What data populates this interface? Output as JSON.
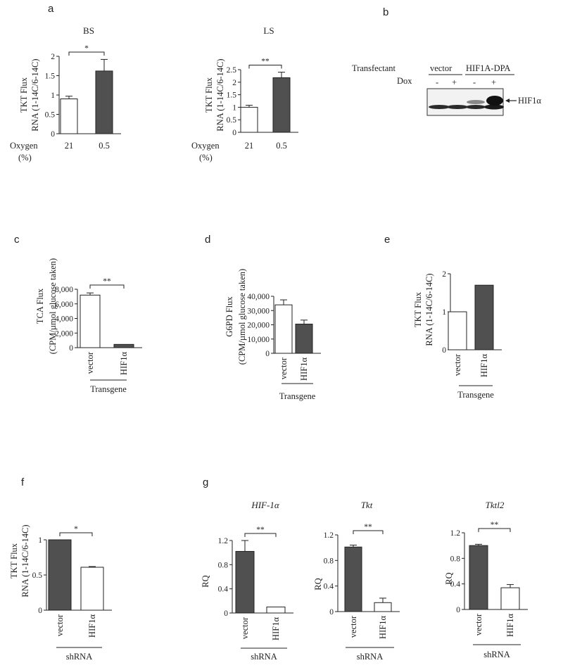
{
  "panels": {
    "a": "a",
    "b": "b",
    "c": "c",
    "d": "d",
    "e": "e",
    "f": "f",
    "g": "g"
  },
  "panel_a_common": {
    "x_axis_label_1": "Oxygen",
    "x_axis_label_2": "(%)"
  },
  "western_blot": {
    "transfectant_label": "Transfectant",
    "dox_label": "Dox",
    "group1": "vector",
    "group2": "HIF1A-DPA",
    "lanes": [
      "-",
      "+",
      "-",
      "+"
    ],
    "band_label": "HIF1α"
  },
  "chart_data": [
    {
      "id": "a-BS",
      "type": "bar",
      "title": "BS",
      "ylabel": [
        "TKT Flux",
        "RNA (1-14C/6-14C)"
      ],
      "xlabel": "Oxygen (%)",
      "categories": [
        "21",
        "0.5"
      ],
      "values": [
        0.9,
        1.62
      ],
      "errors": [
        0.07,
        0.3
      ],
      "fills": [
        "#ffffff",
        "#505050"
      ],
      "ylim": [
        0,
        2
      ],
      "yticks": [
        0,
        0.5,
        1,
        1.5,
        2
      ],
      "ytick_labels": [
        "0",
        "0.5",
        "1",
        "1.5",
        "2"
      ],
      "significance": "*",
      "grid": false
    },
    {
      "id": "a-LS",
      "type": "bar",
      "title": "LS",
      "ylabel": [
        "TKT Flux",
        "RNA (1-14C/6-14C)"
      ],
      "xlabel": "Oxygen (%)",
      "categories": [
        "21",
        "0.5"
      ],
      "values": [
        1.0,
        2.18
      ],
      "errors": [
        0.08,
        0.22
      ],
      "fills": [
        "#ffffff",
        "#505050"
      ],
      "ylim": [
        0,
        2.5
      ],
      "yticks": [
        0,
        0.5,
        1,
        1.5,
        2,
        2.5
      ],
      "ytick_labels": [
        "0",
        "0.5",
        "1",
        "1.5",
        "2",
        "2.5"
      ],
      "significance": "**",
      "grid": false
    },
    {
      "id": "c",
      "type": "bar",
      "ylabel": [
        "TCA Flux",
        "(CPM/µmol glucose taken)"
      ],
      "xlabel": "Transgene",
      "categories": [
        "vector",
        "HIF1α"
      ],
      "values": [
        7200,
        450
      ],
      "errors": [
        300,
        0
      ],
      "fills": [
        "#ffffff",
        "#505050"
      ],
      "ylim": [
        0,
        8000
      ],
      "yticks": [
        0,
        2000,
        4000,
        6000,
        8000
      ],
      "ytick_labels": [
        "0",
        "2,000",
        "4,000",
        "6,000",
        "8,000"
      ],
      "significance": "**",
      "grid": false
    },
    {
      "id": "d",
      "type": "bar",
      "ylabel": [
        "G6PD Flux",
        "(CPM/µmol glucose taken)"
      ],
      "xlabel": "Transgene",
      "categories": [
        "vector",
        "HIF1α"
      ],
      "values": [
        34000,
        20500
      ],
      "errors": [
        3500,
        2800
      ],
      "fills": [
        "#ffffff",
        "#505050"
      ],
      "ylim": [
        0,
        40000
      ],
      "yticks": [
        0,
        10000,
        20000,
        30000,
        40000
      ],
      "ytick_labels": [
        "0",
        "10,000",
        "20,000",
        "30,000",
        "40,000"
      ],
      "grid": false
    },
    {
      "id": "e",
      "type": "bar",
      "ylabel": [
        "TKT Flux",
        "RNA (1-14C/6-14C)"
      ],
      "xlabel": "Transgene",
      "categories": [
        "vector",
        "HIF1α"
      ],
      "values": [
        1.0,
        1.7
      ],
      "errors": [
        0,
        0
      ],
      "fills": [
        "#ffffff",
        "#505050"
      ],
      "ylim": [
        0,
        2
      ],
      "yticks": [
        0,
        1,
        2
      ],
      "ytick_labels": [
        "0",
        "1",
        "2"
      ],
      "grid": false
    },
    {
      "id": "f",
      "type": "bar",
      "ylabel": [
        "TKT Flux",
        "RNA (1-14C/6-14C)"
      ],
      "xlabel": "shRNA",
      "categories": [
        "vector",
        "HIF1α"
      ],
      "values": [
        1.0,
        0.61
      ],
      "errors": [
        0,
        0.01
      ],
      "fills": [
        "#505050",
        "#ffffff"
      ],
      "ylim": [
        0,
        1
      ],
      "yticks": [
        0,
        0.5,
        1
      ],
      "ytick_labels": [
        "0",
        "0.5",
        "1"
      ],
      "significance": "*",
      "grid": false
    },
    {
      "id": "g-HIF",
      "type": "bar",
      "title": "HIF-1α",
      "ylabel": [
        "RQ"
      ],
      "xlabel": "shRNA",
      "categories": [
        "vector",
        "HIF1α"
      ],
      "values": [
        1.02,
        0.1
      ],
      "errors": [
        0.18,
        0
      ],
      "fills": [
        "#505050",
        "#ffffff"
      ],
      "ylim": [
        0,
        1.2
      ],
      "yticks": [
        0,
        0.4,
        0.8,
        1.2
      ],
      "ytick_labels": [
        "0",
        "0.4",
        "0.8",
        "1.2"
      ],
      "significance": "**",
      "grid": false
    },
    {
      "id": "g-Tkt",
      "type": "bar",
      "title": "Tkt",
      "ylabel": [
        "RQ"
      ],
      "xlabel": "shRNA",
      "categories": [
        "vector",
        "HIF1α"
      ],
      "values": [
        1.01,
        0.14
      ],
      "errors": [
        0.03,
        0.07
      ],
      "fills": [
        "#505050",
        "#ffffff"
      ],
      "ylim": [
        0,
        1.2
      ],
      "yticks": [
        0,
        0.4,
        0.8,
        1.2
      ],
      "ytick_labels": [
        "0",
        "0.4",
        "0.8",
        "1.2"
      ],
      "significance": "**",
      "grid": false
    },
    {
      "id": "g-Tktl2",
      "type": "bar",
      "title": "Tktl2",
      "ylabel": [
        "RQ"
      ],
      "xlabel": "shRNA",
      "categories": [
        "vector",
        "HIF1α"
      ],
      "values": [
        1.0,
        0.34
      ],
      "errors": [
        0.02,
        0.05
      ],
      "fills": [
        "#505050",
        "#ffffff"
      ],
      "ylim": [
        0,
        1.2
      ],
      "yticks": [
        0,
        0.4,
        0.8,
        1.2
      ],
      "ytick_labels": [
        "0",
        "0.4",
        "0.8",
        "1.2"
      ],
      "significance": "**",
      "grid": false
    }
  ]
}
